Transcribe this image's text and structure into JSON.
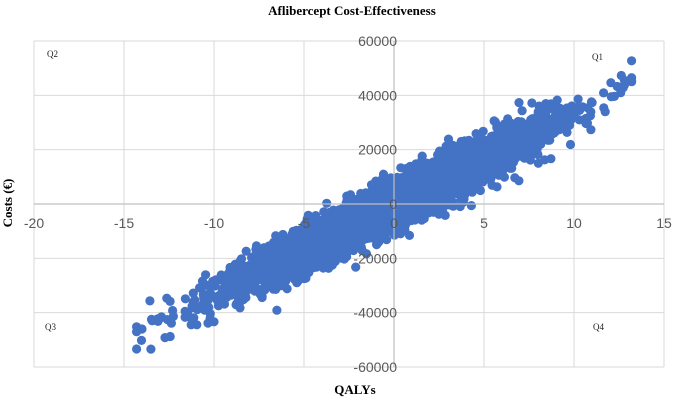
{
  "chart_data": {
    "type": "scatter",
    "title": "Aflibercept Cost-Effectiveness",
    "xlabel": "QALYs",
    "ylabel": "Costs (€)",
    "xlim": [
      -20,
      15
    ],
    "ylim": [
      -60000,
      60000
    ],
    "x_ticks": [
      -20,
      -15,
      -10,
      -5,
      0,
      5,
      10,
      15
    ],
    "y_ticks": [
      -60000,
      -40000,
      -20000,
      0,
      20000,
      40000,
      60000
    ],
    "x_tick_labels": [
      "-20",
      "-15",
      "-10",
      "-5",
      "0",
      "5",
      "10",
      "15"
    ],
    "y_tick_labels": [
      "-60000",
      "-40000",
      "-20000",
      "0",
      "20000",
      "40000",
      "60000"
    ],
    "grid": true,
    "legend": "none",
    "quadrants": [
      "Q1",
      "Q2",
      "Q3",
      "Q4"
    ],
    "series": [
      {
        "color": "#4472C4",
        "distribution": {
          "n": 5000,
          "x_mean": 0,
          "x_sd": 4.2,
          "slope": 3300,
          "residual_sd": 4200,
          "x_min": -14.3,
          "x_max": 13.2,
          "extremes": [
            [
              -14.3,
              -47000
            ],
            [
              -14.0,
              -46000
            ],
            [
              13.2,
              46500
            ],
            [
              12.8,
              45500
            ]
          ]
        }
      }
    ]
  }
}
